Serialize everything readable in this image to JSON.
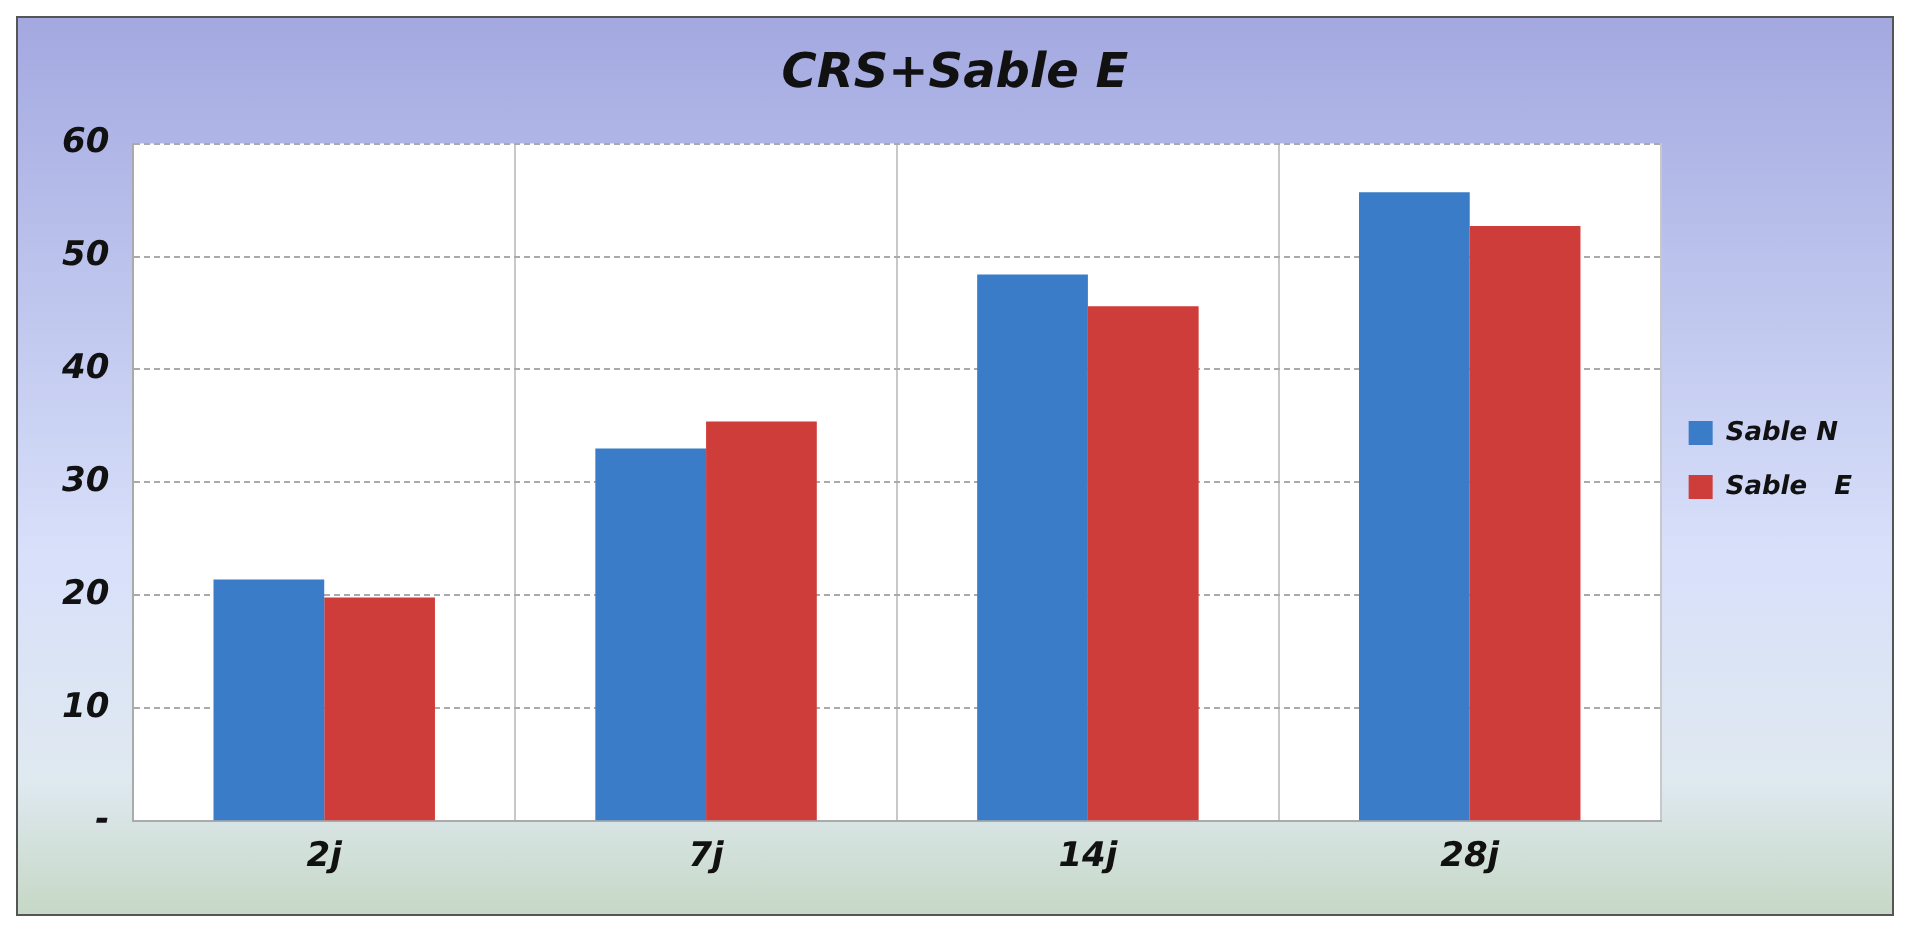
{
  "chart_data": {
    "type": "bar",
    "title": "CRS+Sable E",
    "categories": [
      "2j",
      "7j",
      "14j",
      "28j"
    ],
    "series": [
      {
        "name": "Sable N",
        "color": "#3a7cc8",
        "values": [
          21.4,
          33.0,
          48.4,
          55.7
        ]
      },
      {
        "name": "Sable   E",
        "color": "#cf3d3a",
        "values": [
          19.8,
          35.4,
          45.6,
          52.7
        ]
      }
    ],
    "ylim": [
      0,
      60
    ],
    "yticks": [
      {
        "value": 0,
        "label": "-"
      },
      10,
      20,
      30,
      40,
      50,
      60
    ],
    "grid": true,
    "legend": "right"
  }
}
